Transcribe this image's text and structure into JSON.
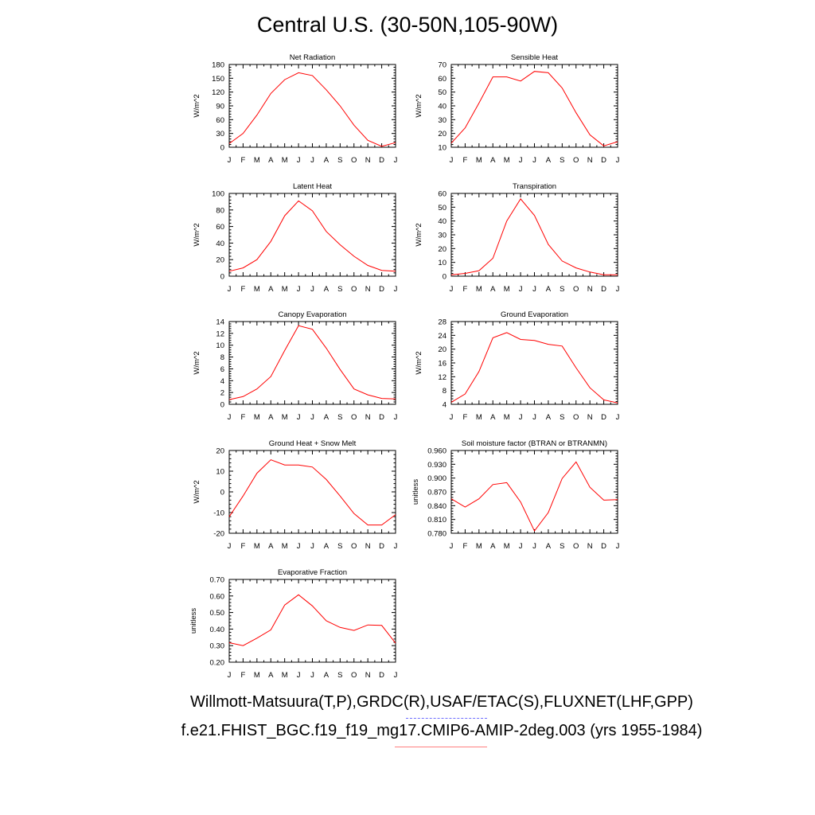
{
  "title": "Central U.S. (30-50N,105-90W)",
  "footer": {
    "obs_line": "Willmott-Matsuura(T,P),GRDC(R),USAF/ETAC(S),FLUXNET(LHF,GPP)",
    "case_line": "f.e21.FHIST_BGC.f19_f19_mg17.CMIP6-AMIP-2deg.003 (yrs 1955-1984)"
  },
  "colors": {
    "line": "#ff0000",
    "axis": "#000000"
  },
  "chart_data": [
    {
      "type": "line",
      "title": "Net Radiation",
      "ylabel": "W/m^2",
      "categories": [
        "J",
        "F",
        "M",
        "A",
        "M",
        "J",
        "J",
        "A",
        "S",
        "O",
        "N",
        "D",
        "J"
      ],
      "ylim": [
        0,
        180
      ],
      "yticks": [
        0,
        30,
        60,
        90,
        120,
        150,
        180
      ],
      "ytick_labels": [
        "0",
        "30",
        "60",
        "90",
        "120",
        "150",
        "180"
      ],
      "values": [
        8,
        30,
        70,
        117,
        147,
        162,
        156,
        125,
        90,
        48,
        15,
        2,
        10
      ]
    },
    {
      "type": "line",
      "title": "Sensible Heat",
      "ylabel": "W/m^2",
      "categories": [
        "J",
        "F",
        "M",
        "A",
        "M",
        "J",
        "J",
        "A",
        "S",
        "O",
        "N",
        "D",
        "J"
      ],
      "ylim": [
        10,
        70
      ],
      "yticks": [
        10,
        20,
        30,
        40,
        50,
        60,
        70
      ],
      "ytick_labels": [
        "10",
        "20",
        "30",
        "40",
        "50",
        "60",
        "70"
      ],
      "values": [
        13,
        24,
        42,
        61,
        61,
        58,
        65,
        64,
        53,
        35,
        19,
        11,
        14
      ]
    },
    {
      "type": "line",
      "title": "Latent Heat",
      "ylabel": "W/m^2",
      "categories": [
        "J",
        "F",
        "M",
        "A",
        "M",
        "J",
        "J",
        "A",
        "S",
        "O",
        "N",
        "D",
        "J"
      ],
      "ylim": [
        0,
        100
      ],
      "yticks": [
        0,
        20,
        40,
        60,
        80,
        100
      ],
      "ytick_labels": [
        "0",
        "20",
        "40",
        "60",
        "80",
        "100"
      ],
      "values": [
        6,
        10,
        20,
        42,
        73,
        91,
        79,
        54,
        38,
        24,
        13,
        7,
        6
      ]
    },
    {
      "type": "line",
      "title": "Transpiration",
      "ylabel": "W/m^2",
      "categories": [
        "J",
        "F",
        "M",
        "A",
        "M",
        "J",
        "J",
        "A",
        "S",
        "O",
        "N",
        "D",
        "J"
      ],
      "ylim": [
        0,
        60
      ],
      "yticks": [
        0,
        10,
        20,
        30,
        40,
        50,
        60
      ],
      "ytick_labels": [
        "0",
        "10",
        "20",
        "30",
        "40",
        "50",
        "60"
      ],
      "values": [
        1,
        2,
        4,
        13,
        40,
        56,
        44,
        23,
        11,
        6,
        3,
        1,
        1
      ]
    },
    {
      "type": "line",
      "title": "Canopy Evaporation",
      "ylabel": "W/m^2",
      "categories": [
        "J",
        "F",
        "M",
        "A",
        "M",
        "J",
        "J",
        "A",
        "S",
        "O",
        "N",
        "D",
        "J"
      ],
      "ylim": [
        0,
        14
      ],
      "yticks": [
        0,
        2,
        4,
        6,
        8,
        10,
        12,
        14
      ],
      "ytick_labels": [
        "0",
        "2",
        "4",
        "6",
        "8",
        "10",
        "12",
        "14"
      ],
      "values": [
        0.8,
        1.3,
        2.6,
        4.7,
        9.1,
        13.3,
        12.7,
        9.5,
        5.9,
        2.6,
        1.6,
        1.0,
        0.9
      ]
    },
    {
      "type": "line",
      "title": "Ground Evaporation",
      "ylabel": "W/m^2",
      "categories": [
        "J",
        "F",
        "M",
        "A",
        "M",
        "J",
        "J",
        "A",
        "S",
        "O",
        "N",
        "D",
        "J"
      ],
      "ylim": [
        4,
        28
      ],
      "yticks": [
        4,
        8,
        12,
        16,
        20,
        24,
        28
      ],
      "ytick_labels": [
        "4",
        "8",
        "12",
        "16",
        "20",
        "24",
        "28"
      ],
      "values": [
        4.6,
        7,
        13.5,
        23.3,
        24.8,
        22.8,
        22.5,
        21.4,
        20.9,
        14.6,
        8.8,
        5.3,
        4.4
      ]
    },
    {
      "type": "line",
      "title": "Ground Heat + Snow Melt",
      "ylabel": "W/m^2",
      "categories": [
        "J",
        "F",
        "M",
        "A",
        "M",
        "J",
        "J",
        "A",
        "S",
        "O",
        "N",
        "D",
        "J"
      ],
      "ylim": [
        -20,
        20
      ],
      "yticks": [
        -20,
        -10,
        0,
        10,
        20
      ],
      "ytick_labels": [
        "-20",
        "-10",
        "0",
        "10",
        "20"
      ],
      "values": [
        -12,
        -2,
        9,
        15.5,
        13,
        13,
        12,
        6,
        -2,
        -10.5,
        -16,
        -16,
        -11
      ]
    },
    {
      "type": "line",
      "title": "Soil moisture factor (BTRAN or BTRANMN)",
      "ylabel": "unitless",
      "categories": [
        "J",
        "F",
        "M",
        "A",
        "M",
        "J",
        "J",
        "A",
        "S",
        "O",
        "N",
        "D",
        "J"
      ],
      "ylim": [
        0.78,
        0.96
      ],
      "yticks": [
        0.78,
        0.81,
        0.84,
        0.87,
        0.9,
        0.93,
        0.96
      ],
      "ytick_labels": [
        "0.780",
        "0.810",
        "0.840",
        "0.870",
        "0.900",
        "0.930",
        "0.960"
      ],
      "values": [
        0.855,
        0.837,
        0.855,
        0.886,
        0.89,
        0.848,
        0.785,
        0.825,
        0.899,
        0.935,
        0.88,
        0.852,
        0.853
      ]
    },
    {
      "type": "line",
      "title": "Evaporative Fraction",
      "ylabel": "unitless",
      "categories": [
        "J",
        "F",
        "M",
        "A",
        "M",
        "J",
        "J",
        "A",
        "S",
        "O",
        "N",
        "D",
        "J"
      ],
      "ylim": [
        0.2,
        0.7
      ],
      "yticks": [
        0.2,
        0.3,
        0.4,
        0.5,
        0.6,
        0.7
      ],
      "ytick_labels": [
        "0.20",
        "0.30",
        "0.40",
        "0.50",
        "0.60",
        "0.70"
      ],
      "values": [
        0.318,
        0.3,
        0.345,
        0.395,
        0.545,
        0.607,
        0.54,
        0.45,
        0.41,
        0.392,
        0.425,
        0.422,
        0.315
      ]
    }
  ]
}
